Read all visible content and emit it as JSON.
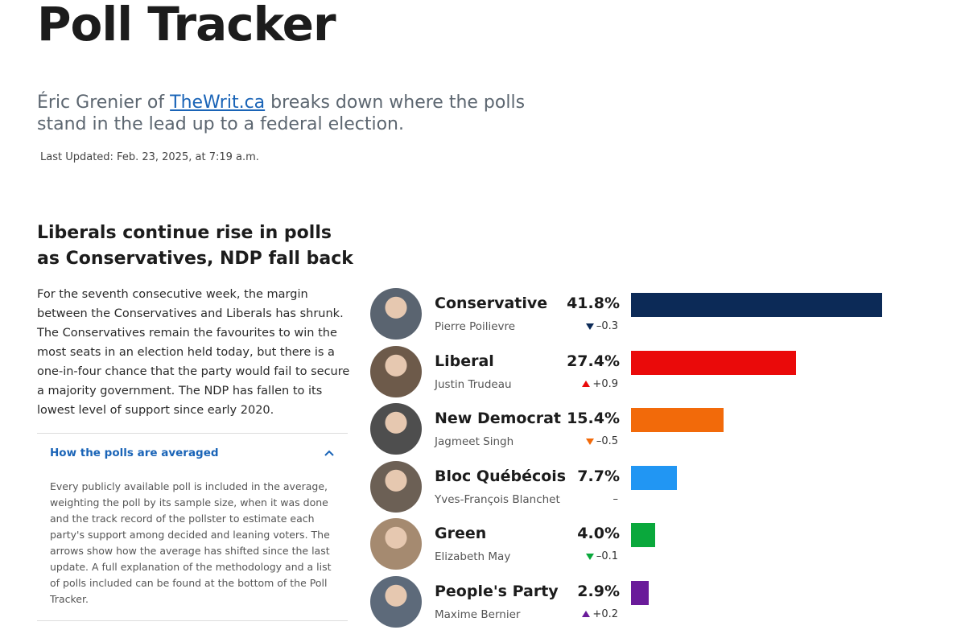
{
  "header": {
    "title": "Poll Tracker",
    "intro_prefix": "Éric Grenier of ",
    "intro_link": "TheWrit.ca",
    "intro_suffix": " breaks down where the polls stand in the lead up to a federal election.",
    "last_updated": "Last Updated: Feb. 23, 2025, at 7:19 a.m."
  },
  "article": {
    "headline": "Liberals continue rise in polls as Conservatives, NDP fall back",
    "body": "For the seventh consecutive week, the margin between the Conservatives and Liberals has shrunk. The Conservatives remain the favourites to win the most seats in an election held today, but there is a one-in-four chance that the party would fail to secure a majority government. The NDP has fallen to its lowest level of support since early 2020."
  },
  "accordion": {
    "title": "How the polls are averaged",
    "body": "Every publicly available poll is included in the average, weighting the poll by its sample size, when it was done and the track record of the pollster to estimate each party's support among decided and leaning voters. The arrows show how the average has shifted since the last update. A full explanation of the methodology and a list of polls included can be found at the bottom of the Poll Tracker."
  },
  "chart_data": {
    "type": "bar",
    "orientation": "horizontal",
    "categories": [
      "Conservative",
      "Liberal",
      "New Democrat",
      "Bloc Québécois",
      "Green",
      "People's Party"
    ],
    "leaders": [
      "Pierre Poilievre",
      "Justin Trudeau",
      "Jagmeet Singh",
      "Yves-François Blanchet",
      "Elizabeth May",
      "Maxime Bernier"
    ],
    "values": [
      41.8,
      27.4,
      15.4,
      7.7,
      4.0,
      2.9
    ],
    "labels": [
      "41.8%",
      "27.4%",
      "15.4%",
      "7.7%",
      "4.0%",
      "2.9%"
    ],
    "changes": [
      "–0.3",
      "+0.9",
      "–0.5",
      "–",
      "–0.1",
      "+0.2"
    ],
    "directions": [
      "down",
      "up",
      "down",
      "none",
      "down",
      "up"
    ],
    "colors": [
      "#0c2a57",
      "#ea0a0a",
      "#f26a0a",
      "#2196f3",
      "#0aa83c",
      "#6a1b9a"
    ],
    "avatar_colors": [
      "#5a6470",
      "#6d5a4a",
      "#4e4e4e",
      "#6c6055",
      "#a58a70",
      "#5d6a7a"
    ],
    "xlim": [
      0,
      41.8
    ]
  }
}
